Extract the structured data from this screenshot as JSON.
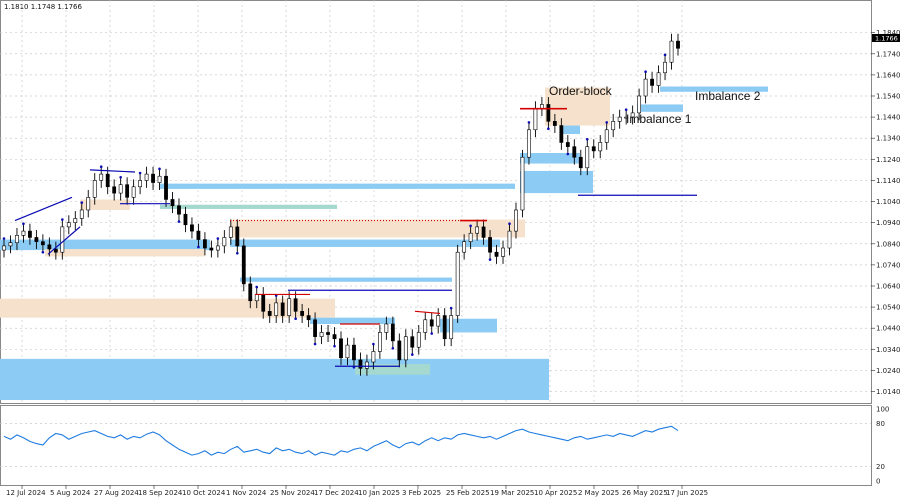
{
  "header": {
    "ohlc_text": "1.1810 1.1748 1.1766"
  },
  "colors": {
    "candle": "#000000",
    "imbalance_blue": "#8ccbf3",
    "orderblock_tan": "#f6e2cc",
    "teal_zone": "#a5d9cf",
    "red_line": "#d40000",
    "navy_line": "#0b0bb4",
    "rsi_line": "#1e7be0",
    "grid": "#c9c9c9"
  },
  "chart_data": [
    {
      "type": "candlestick",
      "title": "",
      "xlabel": "",
      "ylabel": "",
      "ylim": [
        1.01,
        1.19
      ],
      "grid": true,
      "current_price": "1.1766",
      "x_tick_labels": [
        "12 Jul 2024",
        "5 Aug 2024",
        "27 Aug 2024",
        "18 Sep 2024",
        "10 Oct 2024",
        "1 Nov 2024",
        "25 Nov 2024",
        "17 Dec 2024",
        "10 Jan 2025",
        "3 Feb 2025",
        "25 Feb 2025",
        "19 Mar 2025",
        "10 Apr 2025",
        "2 May 2025",
        "26 May 2025",
        "17 Jun 2025"
      ],
      "y_tick_labels": [
        "1.1840",
        "1.1740",
        "1.1640",
        "1.1540",
        "1.1440",
        "1.1340",
        "1.1240",
        "1.1140",
        "1.1040",
        "1.0940",
        "1.0840",
        "1.0740",
        "1.0640",
        "1.0540",
        "1.0440",
        "1.0340",
        "1.0240",
        "1.0140"
      ],
      "series": [
        {
          "x": [
            "2024-07-05",
            "2024-07-08",
            "2024-07-11",
            "2024-07-15",
            "2024-07-18",
            "2024-07-22",
            "2024-07-25",
            "2024-07-29",
            "2024-08-01",
            "2024-08-05",
            "2024-08-08",
            "2024-08-12",
            "2024-08-15",
            "2024-08-19",
            "2024-08-22",
            "2024-08-26",
            "2024-08-29",
            "2024-09-02",
            "2024-09-05",
            "2024-09-09",
            "2024-09-12",
            "2024-09-16",
            "2024-09-19",
            "2024-09-23",
            "2024-09-26",
            "2024-09-30",
            "2024-10-03",
            "2024-10-07",
            "2024-10-10",
            "2024-10-14",
            "2024-10-17",
            "2024-10-21",
            "2024-10-24",
            "2024-10-28",
            "2024-10-31",
            "2024-11-04",
            "2024-11-07",
            "2024-11-11",
            "2024-11-14",
            "2024-11-18",
            "2024-11-21",
            "2024-11-25",
            "2024-11-28",
            "2024-12-02",
            "2024-12-05",
            "2024-12-09",
            "2024-12-12",
            "2024-12-16",
            "2024-12-19",
            "2024-12-23",
            "2024-12-26",
            "2024-12-30",
            "2025-01-02",
            "2025-01-06",
            "2025-01-09",
            "2025-01-13",
            "2025-01-16",
            "2025-01-20",
            "2025-01-23",
            "2025-01-27",
            "2025-01-30",
            "2025-02-03",
            "2025-02-06",
            "2025-02-10",
            "2025-02-13",
            "2025-02-17",
            "2025-02-20",
            "2025-02-24",
            "2025-02-27",
            "2025-03-03",
            "2025-03-06",
            "2025-03-10",
            "2025-03-13",
            "2025-03-17",
            "2025-03-20",
            "2025-03-24",
            "2025-03-27",
            "2025-03-31",
            "2025-04-03",
            "2025-04-07",
            "2025-04-10",
            "2025-04-14",
            "2025-04-17",
            "2025-04-21",
            "2025-04-24",
            "2025-04-28",
            "2025-05-01",
            "2025-05-05",
            "2025-05-08",
            "2025-05-12",
            "2025-05-15",
            "2025-05-19",
            "2025-05-22",
            "2025-05-26",
            "2025-05-29",
            "2025-06-02",
            "2025-06-05",
            "2025-06-09",
            "2025-06-12",
            "2025-06-16",
            "2025-06-19",
            "2025-06-23",
            "2025-06-26",
            "2025-06-30",
            "2025-07-01"
          ],
          "close": [
            1.083,
            1.0845,
            1.088,
            1.09,
            1.087,
            1.085,
            1.0835,
            1.0815,
            1.08,
            1.092,
            1.094,
            1.096,
            1.1,
            1.106,
            1.114,
            1.117,
            1.111,
            1.108,
            1.112,
            1.106,
            1.111,
            1.114,
            1.117,
            1.113,
            1.116,
            1.105,
            1.102,
            1.098,
            1.093,
            1.09,
            1.086,
            1.082,
            1.081,
            1.083,
            1.087,
            1.092,
            1.083,
            1.065,
            1.057,
            1.06,
            1.052,
            1.05,
            1.056,
            1.05,
            1.058,
            1.052,
            1.05,
            1.048,
            1.04,
            1.042,
            1.041,
            1.039,
            1.03,
            1.036,
            1.029,
            1.025,
            1.028,
            1.033,
            1.042,
            1.046,
            1.038,
            1.029,
            1.04,
            1.035,
            1.042,
            1.048,
            1.045,
            1.05,
            1.039,
            1.05,
            1.08,
            1.085,
            1.089,
            1.092,
            1.087,
            1.08,
            1.078,
            1.082,
            1.09,
            1.1,
            1.125,
            1.138,
            1.148,
            1.15,
            1.142,
            1.14,
            1.132,
            1.13,
            1.125,
            1.12,
            1.13,
            1.128,
            1.132,
            1.138,
            1.142,
            1.144,
            1.144,
            1.146,
            1.154,
            1.162,
            1.159,
            1.165,
            1.17,
            1.18,
            1.1766
          ]
        }
      ]
    },
    {
      "type": "line",
      "title": "",
      "ylim": [
        0,
        100
      ],
      "y_tick_labels": [
        "100",
        "80",
        "20",
        "0"
      ],
      "series": [
        {
          "values": [
            62,
            58,
            64,
            60,
            55,
            52,
            50,
            60,
            66,
            64,
            58,
            62,
            66,
            68,
            70,
            66,
            62,
            60,
            64,
            58,
            62,
            60,
            65,
            68,
            64,
            56,
            50,
            44,
            40,
            36,
            38,
            42,
            36,
            40,
            38,
            44,
            48,
            40,
            42,
            44,
            40,
            38,
            46,
            42,
            44,
            40,
            38,
            42,
            36,
            40,
            38,
            36,
            42,
            40,
            44,
            46,
            42,
            48,
            52,
            56,
            50,
            46,
            52,
            54,
            50,
            56,
            60,
            56,
            60,
            58,
            64,
            66,
            64,
            62,
            60,
            62,
            58,
            62,
            66,
            70,
            72,
            68,
            66,
            64,
            62,
            60,
            58,
            56,
            60,
            62,
            58,
            60,
            62,
            64,
            62,
            66,
            64,
            62,
            66,
            70,
            68,
            72,
            74,
            76,
            70
          ]
        }
      ]
    }
  ],
  "annotations": {
    "order_block": "Order-block",
    "imbalance_1": "Imbalance 1",
    "imbalance_2": "Imbalance 2"
  }
}
